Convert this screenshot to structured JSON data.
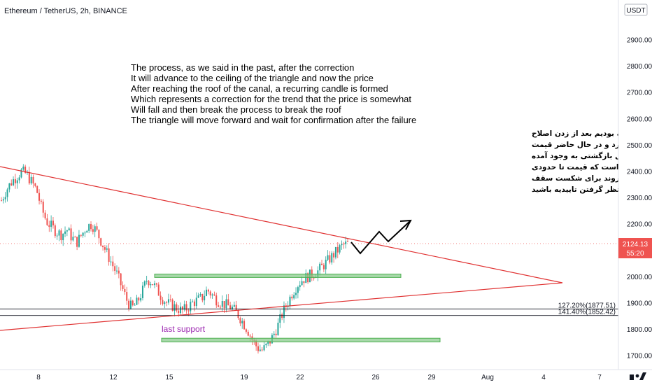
{
  "header": {
    "title": "Ethereum / TetherUS, 2h, BINANCE",
    "currency_button": "USDT"
  },
  "colors": {
    "up": "#26a69a",
    "down": "#ef5350",
    "trend": "#e03131",
    "zone": "#81c784",
    "support_label": "#9c27b0"
  },
  "chart_data": {
    "type": "candlestick",
    "symbol": "Ethereum / TetherUS",
    "interval": "2h",
    "exchange": "BINANCE",
    "ylim": [
      1680,
      3060
    ],
    "y_ticks": [
      "2900.00",
      "2800.00",
      "2700.00",
      "2600.00",
      "2500.00",
      "2400.00",
      "2300.00",
      "2200.00",
      "2100.00",
      "2000.00",
      "1900.00",
      "1800.00",
      "1700.00"
    ],
    "x_ticks": [
      "8",
      "12",
      "15",
      "19",
      "22",
      "26",
      "29",
      "Aug",
      "4",
      "7"
    ],
    "last_price": "2124.13",
    "countdown": "55:20",
    "fib_levels": [
      {
        "label": "127.20%(1877.51)",
        "value": 1877.51
      },
      {
        "label": "141.40%(1852.42)",
        "value": 1852.42
      }
    ],
    "zones": [
      {
        "name": "resistance-zone",
        "low": 1997,
        "high": 2010
      },
      {
        "name": "last-support-zone",
        "low": 1752,
        "high": 1766
      }
    ],
    "support_label": "last support",
    "price_path": [
      2290,
      2330,
      2360,
      2380,
      2400,
      2390,
      2360,
      2330,
      2260,
      2210,
      2190,
      2170,
      2160,
      2180,
      2150,
      2130,
      2160,
      2190,
      2200,
      2170,
      2130,
      2090,
      2050,
      2010,
      1960,
      1910,
      1880,
      1900,
      1940,
      1990,
      1980,
      1950,
      1920,
      1900,
      1890,
      1880,
      1870,
      1880,
      1900,
      1910,
      1920,
      1950,
      1930,
      1910,
      1900,
      1890,
      1880,
      1860,
      1830,
      1800,
      1760,
      1730,
      1720,
      1740,
      1770,
      1810,
      1860,
      1900,
      1940,
      1970,
      1990,
      2000,
      2010,
      2020,
      2040,
      2060,
      2080,
      2100,
      2120,
      2124
    ]
  },
  "annotations": {
    "english": [
      "The process, as we said in the past, after the correction",
      "It will advance to the ceiling of the triangle and now the price",
      "After reaching the roof of the canal, a recurring candle is formed",
      "Which represents a correction for the trend that the price is somewhat",
      "Will fall and then break the process to break the roof",
      "The triangle will move forward and wait for confirmation after the failure"
    ],
    "persian": [
      "روند همانطور که در گذشته گفته بودیم بعد از زدن اصلاح",
      "تا سقف مثلث پیشروی خواهد کرد و در حال حاضر قیمت",
      "بعد از رسیدن به سقف کانال یک کندل بازگشتی به وجود آمده",
      "که نشان دهنده یک اصلاح برای روند است که قیمت تا حدودی",
      "ریزش خواهد داشت و بعد استراحت روند برای شکست سقف",
      "مثلث پیشروی خواهد کرد و بعد از شکست منتظر گرفتن تاییدیه باشید"
    ]
  }
}
